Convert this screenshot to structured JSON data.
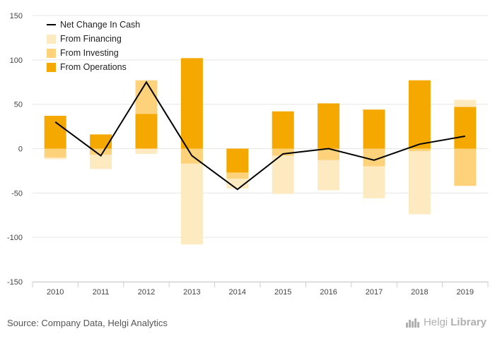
{
  "chart_data": {
    "type": "bar",
    "categories": [
      "2010",
      "2011",
      "2012",
      "2013",
      "2014",
      "2015",
      "2016",
      "2017",
      "2018",
      "2019"
    ],
    "series": [
      {
        "name": "From Operations",
        "values": [
          37,
          16,
          39,
          102,
          -27,
          42,
          51,
          44,
          77,
          47
        ]
      },
      {
        "name": "From Investing",
        "values": [
          -10,
          -7,
          38,
          -17,
          -7,
          -8,
          -13,
          -20,
          -3,
          -42
        ]
      },
      {
        "name": "From Financing",
        "values": [
          -2,
          -16,
          -6,
          -91,
          -11,
          -43,
          -34,
          -36,
          -71,
          8
        ]
      },
      {
        "name": "Net Change In Cash",
        "type": "line",
        "values": [
          30,
          -8,
          75,
          -8,
          -46,
          -6,
          0,
          -13,
          5,
          14
        ]
      }
    ],
    "ylim": [
      -150,
      150
    ],
    "yticks": [
      -150,
      -100,
      -50,
      0,
      50,
      100,
      150
    ],
    "ytick_labels": [
      "-150",
      "-100",
      "-50",
      "0",
      "50",
      "100",
      "150"
    ],
    "legend_position": "top-left",
    "grid": true
  },
  "colors": {
    "operations": "#f5a800",
    "investing": "#fdd27a",
    "financing": "#feeac0",
    "net": "#000000",
    "grid": "#e6e6e6"
  },
  "footer": {
    "source": "Source: Company Data, Helgi Analytics",
    "brand_light": "Helgi",
    "brand_strong": "Library"
  }
}
